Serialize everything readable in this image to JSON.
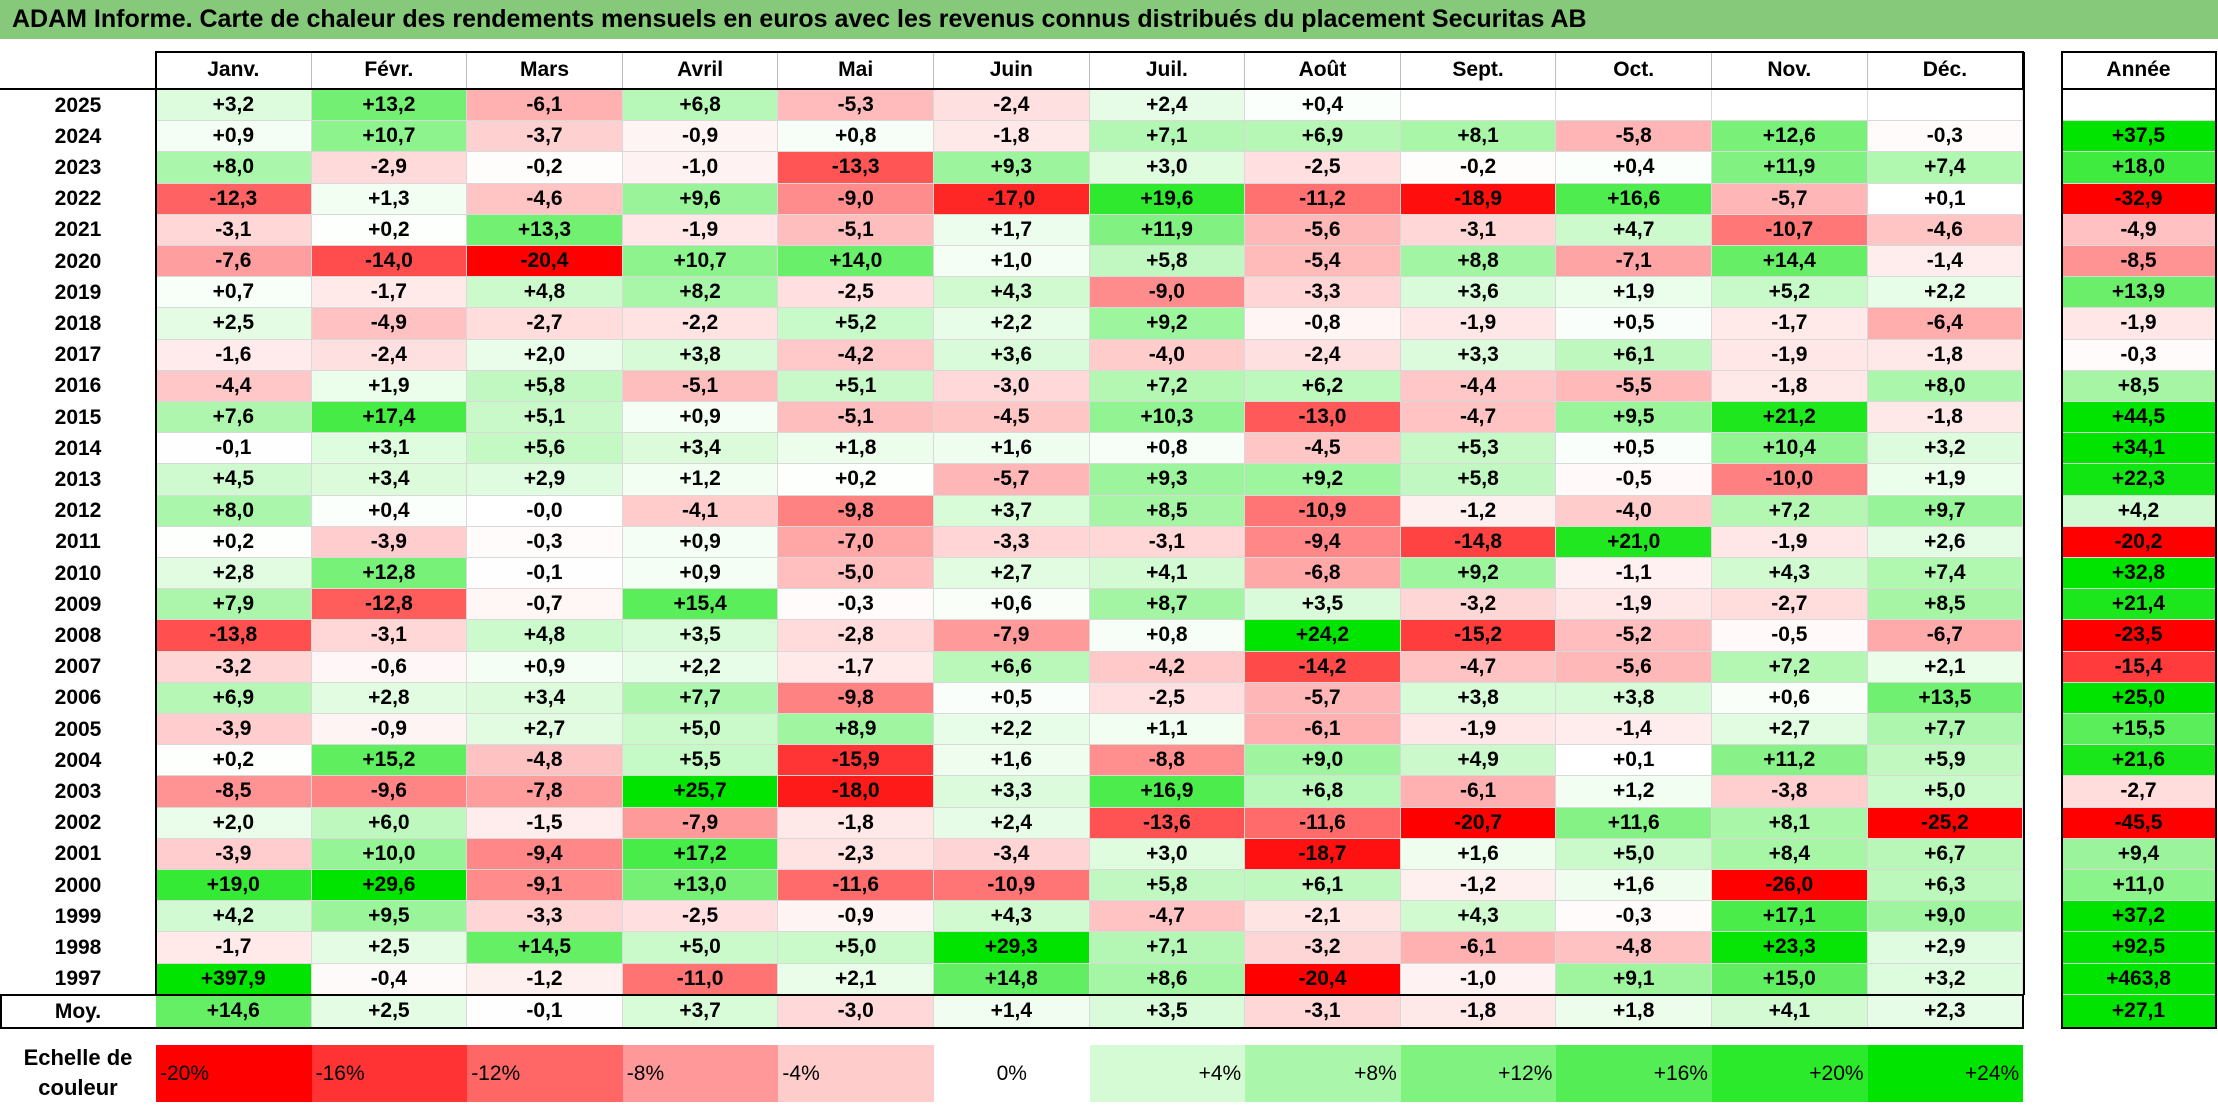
{
  "title": "ADAM Informe. Carte de chaleur des rendements mensuels en euros avec les revenus connus distribués du placement Securitas AB",
  "chart_data": {
    "type": "heatmap",
    "months": [
      "Janv.",
      "Févr.",
      "Mars",
      "Avril",
      "Mai",
      "Juin",
      "Juil.",
      "Août",
      "Sept.",
      "Oct.",
      "Nov.",
      "Déc."
    ],
    "annual_label": "Année",
    "rows": [
      {
        "year": "2025",
        "values": [
          "+3,2",
          "+13,2",
          "-6,1",
          "+6,8",
          "-5,3",
          "-2,4",
          "+2,4",
          "+0,4",
          "",
          "",
          "",
          ""
        ],
        "annual": ""
      },
      {
        "year": "2024",
        "values": [
          "+0,9",
          "+10,7",
          "-3,7",
          "-0,9",
          "+0,8",
          "-1,8",
          "+7,1",
          "+6,9",
          "+8,1",
          "-5,8",
          "+12,6",
          "-0,3"
        ],
        "annual": "+37,5"
      },
      {
        "year": "2023",
        "values": [
          "+8,0",
          "-2,9",
          "-0,2",
          "-1,0",
          "-13,3",
          "+9,3",
          "+3,0",
          "-2,5",
          "-0,2",
          "+0,4",
          "+11,9",
          "+7,4"
        ],
        "annual": "+18,0"
      },
      {
        "year": "2022",
        "values": [
          "-12,3",
          "+1,3",
          "-4,6",
          "+9,6",
          "-9,0",
          "-17,0",
          "+19,6",
          "-11,2",
          "-18,9",
          "+16,6",
          "-5,7",
          "+0,1"
        ],
        "annual": "-32,9"
      },
      {
        "year": "2021",
        "values": [
          "-3,1",
          "+0,2",
          "+13,3",
          "-1,9",
          "-5,1",
          "+1,7",
          "+11,9",
          "-5,6",
          "-3,1",
          "+4,7",
          "-10,7",
          "-4,6"
        ],
        "annual": "-4,9"
      },
      {
        "year": "2020",
        "values": [
          "-7,6",
          "-14,0",
          "-20,4",
          "+10,7",
          "+14,0",
          "+1,0",
          "+5,8",
          "-5,4",
          "+8,8",
          "-7,1",
          "+14,4",
          "-1,4"
        ],
        "annual": "-8,5"
      },
      {
        "year": "2019",
        "values": [
          "+0,7",
          "-1,7",
          "+4,8",
          "+8,2",
          "-2,5",
          "+4,3",
          "-9,0",
          "-3,3",
          "+3,6",
          "+1,9",
          "+5,2",
          "+2,2"
        ],
        "annual": "+13,9"
      },
      {
        "year": "2018",
        "values": [
          "+2,5",
          "-4,9",
          "-2,7",
          "-2,2",
          "+5,2",
          "+2,2",
          "+9,2",
          "-0,8",
          "-1,9",
          "+0,5",
          "-1,7",
          "-6,4"
        ],
        "annual": "-1,9"
      },
      {
        "year": "2017",
        "values": [
          "-1,6",
          "-2,4",
          "+2,0",
          "+3,8",
          "-4,2",
          "+3,6",
          "-4,0",
          "-2,4",
          "+3,3",
          "+6,1",
          "-1,9",
          "-1,8"
        ],
        "annual": "-0,3"
      },
      {
        "year": "2016",
        "values": [
          "-4,4",
          "+1,9",
          "+5,8",
          "-5,1",
          "+5,1",
          "-3,0",
          "+7,2",
          "+6,2",
          "-4,4",
          "-5,5",
          "-1,8",
          "+8,0"
        ],
        "annual": "+8,5"
      },
      {
        "year": "2015",
        "values": [
          "+7,6",
          "+17,4",
          "+5,1",
          "+0,9",
          "-5,1",
          "-4,5",
          "+10,3",
          "-13,0",
          "-4,7",
          "+9,5",
          "+21,2",
          "-1,8"
        ],
        "annual": "+44,5"
      },
      {
        "year": "2014",
        "values": [
          "-0,1",
          "+3,1",
          "+5,6",
          "+3,4",
          "+1,8",
          "+1,6",
          "+0,8",
          "-4,5",
          "+5,3",
          "+0,5",
          "+10,4",
          "+3,2"
        ],
        "annual": "+34,1"
      },
      {
        "year": "2013",
        "values": [
          "+4,5",
          "+3,4",
          "+2,9",
          "+1,2",
          "+0,2",
          "-5,7",
          "+9,3",
          "+9,2",
          "+5,8",
          "-0,5",
          "-10,0",
          "+1,9"
        ],
        "annual": "+22,3"
      },
      {
        "year": "2012",
        "values": [
          "+8,0",
          "+0,4",
          "-0,0",
          "-4,1",
          "-9,8",
          "+3,7",
          "+8,5",
          "-10,9",
          "-1,2",
          "-4,0",
          "+7,2",
          "+9,7"
        ],
        "annual": "+4,2"
      },
      {
        "year": "2011",
        "values": [
          "+0,2",
          "-3,9",
          "-0,3",
          "+0,9",
          "-7,0",
          "-3,3",
          "-3,1",
          "-9,4",
          "-14,8",
          "+21,0",
          "-1,9",
          "+2,6"
        ],
        "annual": "-20,2"
      },
      {
        "year": "2010",
        "values": [
          "+2,8",
          "+12,8",
          "-0,1",
          "+0,9",
          "-5,0",
          "+2,7",
          "+4,1",
          "-6,8",
          "+9,2",
          "-1,1",
          "+4,3",
          "+7,4"
        ],
        "annual": "+32,8"
      },
      {
        "year": "2009",
        "values": [
          "+7,9",
          "-12,8",
          "-0,7",
          "+15,4",
          "-0,3",
          "+0,6",
          "+8,7",
          "+3,5",
          "-3,2",
          "-1,9",
          "-2,7",
          "+8,5"
        ],
        "annual": "+21,4"
      },
      {
        "year": "2008",
        "values": [
          "-13,8",
          "-3,1",
          "+4,8",
          "+3,5",
          "-2,8",
          "-7,9",
          "+0,8",
          "+24,2",
          "-15,2",
          "-5,2",
          "-0,5",
          "-6,7"
        ],
        "annual": "-23,5"
      },
      {
        "year": "2007",
        "values": [
          "-3,2",
          "-0,6",
          "+0,9",
          "+2,2",
          "-1,7",
          "+6,6",
          "-4,2",
          "-14,2",
          "-4,7",
          "-5,6",
          "+7,2",
          "+2,1"
        ],
        "annual": "-15,4"
      },
      {
        "year": "2006",
        "values": [
          "+6,9",
          "+2,8",
          "+3,4",
          "+7,7",
          "-9,8",
          "+0,5",
          "-2,5",
          "-5,7",
          "+3,8",
          "+3,8",
          "+0,6",
          "+13,5"
        ],
        "annual": "+25,0"
      },
      {
        "year": "2005",
        "values": [
          "-3,9",
          "-0,9",
          "+2,7",
          "+5,0",
          "+8,9",
          "+2,2",
          "+1,1",
          "-6,1",
          "-1,9",
          "-1,4",
          "+2,7",
          "+7,7"
        ],
        "annual": "+15,5"
      },
      {
        "year": "2004",
        "values": [
          "+0,2",
          "+15,2",
          "-4,8",
          "+5,5",
          "-15,9",
          "+1,6",
          "-8,8",
          "+9,0",
          "+4,9",
          "+0,1",
          "+11,2",
          "+5,9"
        ],
        "annual": "+21,6"
      },
      {
        "year": "2003",
        "values": [
          "-8,5",
          "-9,6",
          "-7,8",
          "+25,7",
          "-18,0",
          "+3,3",
          "+16,9",
          "+6,8",
          "-6,1",
          "+1,2",
          "-3,8",
          "+5,0"
        ],
        "annual": "-2,7"
      },
      {
        "year": "2002",
        "values": [
          "+2,0",
          "+6,0",
          "-1,5",
          "-7,9",
          "-1,8",
          "+2,4",
          "-13,6",
          "-11,6",
          "-20,7",
          "+11,6",
          "+8,1",
          "-25,2"
        ],
        "annual": "-45,5"
      },
      {
        "year": "2001",
        "values": [
          "-3,9",
          "+10,0",
          "-9,4",
          "+17,2",
          "-2,3",
          "-3,4",
          "+3,0",
          "-18,7",
          "+1,6",
          "+5,0",
          "+8,4",
          "+6,7"
        ],
        "annual": "+9,4"
      },
      {
        "year": "2000",
        "values": [
          "+19,0",
          "+29,6",
          "-9,1",
          "+13,0",
          "-11,6",
          "-10,9",
          "+5,8",
          "+6,1",
          "-1,2",
          "+1,6",
          "-26,0",
          "+6,3"
        ],
        "annual": "+11,0"
      },
      {
        "year": "1999",
        "values": [
          "+4,2",
          "+9,5",
          "-3,3",
          "-2,5",
          "-0,9",
          "+4,3",
          "-4,7",
          "-2,1",
          "+4,3",
          "-0,3",
          "+17,1",
          "+9,0"
        ],
        "annual": "+37,2"
      },
      {
        "year": "1998",
        "values": [
          "-1,7",
          "+2,5",
          "+14,5",
          "+5,0",
          "+5,0",
          "+29,3",
          "+7,1",
          "-3,2",
          "-6,1",
          "-4,8",
          "+23,3",
          "+2,9"
        ],
        "annual": "+92,5"
      },
      {
        "year": "1997",
        "values": [
          "+397,9",
          "-0,4",
          "-1,2",
          "-11,0",
          "+2,1",
          "+14,8",
          "+8,6",
          "-20,4",
          "-1,0",
          "+9,1",
          "+15,0",
          "+3,2"
        ],
        "annual": "+463,8"
      }
    ],
    "average": {
      "label": "Moy.",
      "values": [
        "+14,6",
        "+2,5",
        "-0,1",
        "+3,7",
        "-3,0",
        "+1,4",
        "+3,5",
        "-3,1",
        "-1,8",
        "+1,8",
        "+4,1",
        "+2,3"
      ],
      "annual": "+27,1"
    },
    "scale": {
      "label_line1": "Echelle de",
      "label_line2": "couleur",
      "steps": [
        {
          "label": "-20%",
          "value": -20
        },
        {
          "label": "-16%",
          "value": -16
        },
        {
          "label": "-12%",
          "value": -12
        },
        {
          "label": "-8%",
          "value": -8
        },
        {
          "label": "-4%",
          "value": -4
        },
        {
          "label": "0%",
          "value": 0
        },
        {
          "label": "+4%",
          "value": 4
        },
        {
          "label": "+8%",
          "value": 8
        },
        {
          "label": "+12%",
          "value": 12
        },
        {
          "label": "+16%",
          "value": 16
        },
        {
          "label": "+20%",
          "value": 20
        },
        {
          "label": "+24%",
          "value": 24
        }
      ]
    },
    "colors": {
      "negative": "#ff0000",
      "neutral": "#ffffff",
      "positive": "#00e000"
    }
  }
}
